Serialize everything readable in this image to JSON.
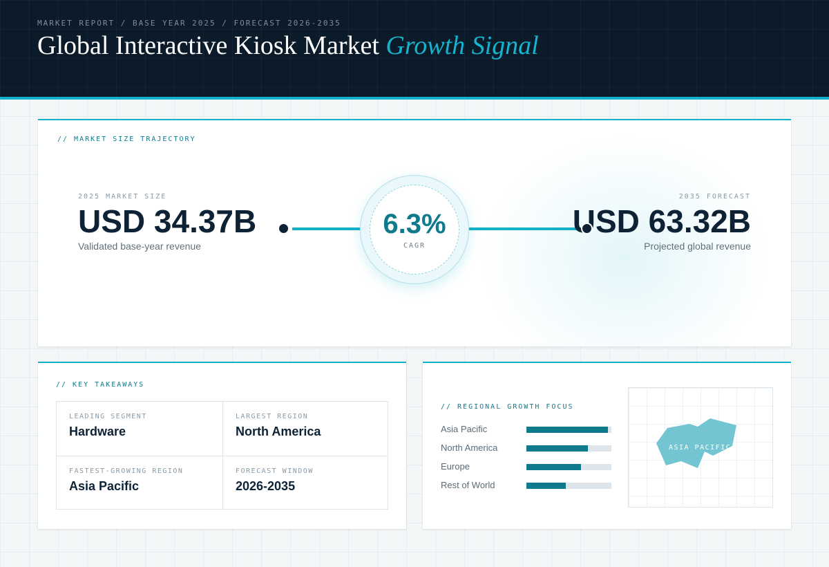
{
  "header": {
    "breadcrumb": "MARKET REPORT / BASE YEAR 2025 / FORECAST 2026-2035",
    "title_main": "Global Interactive Kiosk Market ",
    "title_accent": "Growth Signal"
  },
  "trajectory": {
    "label": "// MARKET SIZE TRAJECTORY",
    "base": {
      "caption": "2025 MARKET SIZE",
      "value": "USD 34.37B",
      "sub": "Validated base-year revenue"
    },
    "forecast": {
      "caption": "2035 FORECAST",
      "value": "USD 63.32B",
      "sub": "Projected global revenue"
    },
    "cagr": {
      "value": "6.3%",
      "label": "CAGR"
    }
  },
  "takeaways": {
    "label": "// KEY TAKEAWAYS",
    "items": [
      {
        "key": "LEADING SEGMENT",
        "value": "Hardware"
      },
      {
        "key": "LARGEST REGION",
        "value": "North America"
      },
      {
        "key": "FASTEST-GROWING REGION",
        "value": "Asia Pacific"
      },
      {
        "key": "FORECAST WINDOW",
        "value": "2026-2035"
      }
    ]
  },
  "regional": {
    "label": "// REGIONAL GROWTH FOCUS",
    "bars": [
      {
        "name": "Asia Pacific",
        "level": 0.96
      },
      {
        "name": "North America",
        "level": 0.72
      },
      {
        "name": "Europe",
        "level": 0.64
      },
      {
        "name": "Rest of World",
        "level": 0.46
      }
    ],
    "map_label": "ASIA PACIFIC"
  },
  "colors": {
    "accent": "#13b1cc",
    "accent_dark": "#0f7a8c",
    "navy": "#0b1b29",
    "map_region": "#72c5d1"
  }
}
